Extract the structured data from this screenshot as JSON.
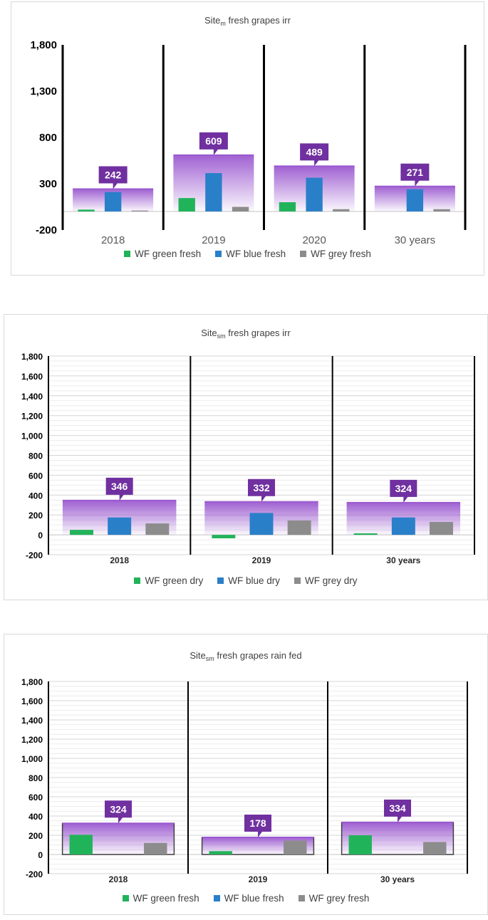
{
  "chart_data": [
    {
      "type": "bar",
      "title": {
        "main": "Site",
        "sub": "m",
        "rest": " fresh grapes irr"
      },
      "categories": [
        "2018",
        "2019",
        "2020",
        "30 years"
      ],
      "yticks": [
        "1,800",
        "1,300",
        "800",
        "300",
        "-200"
      ],
      "ylim": [
        -200,
        1800
      ],
      "series": [
        {
          "name": "WF green fresh",
          "color": "#21b35a",
          "values": [
            20,
            145,
            100,
            0
          ]
        },
        {
          "name": "WF blue fresh",
          "color": "#2a7fc9",
          "values": [
            210,
            415,
            365,
            240
          ]
        },
        {
          "name": "WF grey fresh",
          "color": "#8c8c8c",
          "values": [
            10,
            50,
            25,
            25
          ]
        }
      ],
      "totals": [
        242,
        609,
        489,
        271
      ],
      "grid": false,
      "legend": "bottom"
    },
    {
      "type": "bar",
      "title": {
        "main": "Site",
        "sub": "sm",
        "rest": " fresh grapes irr"
      },
      "categories": [
        "2018",
        "2019",
        "30 years"
      ],
      "yticks": [
        "1,800",
        "1,600",
        "1,400",
        "1,200",
        "1,000",
        "800",
        "600",
        "400",
        "200",
        "0",
        "-200"
      ],
      "ylim": [
        -200,
        1800
      ],
      "series": [
        {
          "name": "WF green dry",
          "color": "#21b35a",
          "values": [
            50,
            -35,
            15
          ]
        },
        {
          "name": "WF blue dry",
          "color": "#2a7fc9",
          "values": [
            175,
            220,
            175
          ]
        },
        {
          "name": "WF grey dry",
          "color": "#8c8c8c",
          "values": [
            115,
            145,
            130
          ]
        }
      ],
      "totals": [
        346,
        332,
        324
      ],
      "grid": true,
      "legend": "bottom"
    },
    {
      "type": "bar",
      "title": {
        "main": "Site",
        "sub": "sm",
        "rest": " fresh grapes rain fed"
      },
      "categories": [
        "2018",
        "2019",
        "30 years"
      ],
      "yticks": [
        "1,800",
        "1,600",
        "1,400",
        "1,200",
        "1,000",
        "800",
        "600",
        "400",
        "200",
        "0",
        "-200"
      ],
      "ylim": [
        -200,
        1800
      ],
      "series": [
        {
          "name": "WF green fresh",
          "color": "#21b35a",
          "values": [
            205,
            35,
            200
          ]
        },
        {
          "name": "WF blue fresh",
          "color": "#2a7fc9",
          "values": [
            0,
            0,
            0
          ]
        },
        {
          "name": "WF grey fresh",
          "color": "#8c8c8c",
          "values": [
            120,
            145,
            130
          ]
        }
      ],
      "totals": [
        324,
        178,
        334
      ],
      "grid": true,
      "legend": "bottom"
    }
  ],
  "colors": {
    "callout": "#7030a0",
    "callout_text": "#ffffff",
    "total_band": "#9b59d0"
  }
}
